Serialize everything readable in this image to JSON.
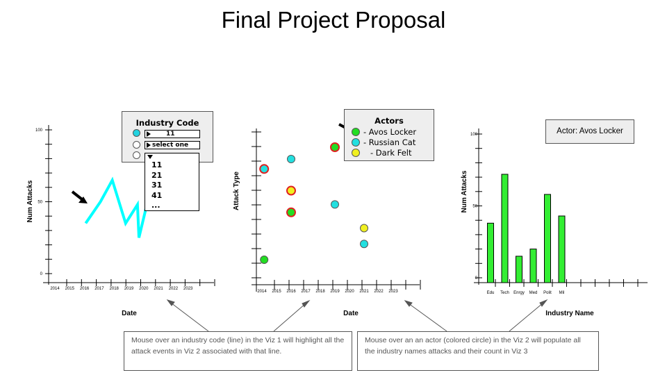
{
  "title": "Final Project Proposal",
  "viz1": {
    "ylabel": "Num Attacks",
    "xlabel": "Date",
    "y_ticks": [
      "100",
      "50",
      "0"
    ],
    "x_ticks": [
      "2014",
      "2015",
      "2016",
      "2017",
      "2018",
      "2019",
      "2020",
      "2021",
      "2022",
      "2023"
    ],
    "line_color": "#00ffff"
  },
  "industry_panel": {
    "title": "Industry Code",
    "select1_value": "11",
    "select2_value": "select one",
    "radio1_color": "#22d3e0",
    "dropdown_options": [
      "11",
      "21",
      "31",
      "41",
      "..."
    ]
  },
  "viz2": {
    "ylabel": "Attack Type",
    "xlabel": "Date",
    "x_ticks": [
      "2014",
      "2015",
      "2016",
      "2017",
      "2018",
      "2019",
      "2020",
      "2021",
      "2022",
      "2023"
    ]
  },
  "actors_panel": {
    "title": "Actors",
    "items": [
      {
        "label": "- Avos Locker",
        "color": "#22dd22"
      },
      {
        "label": "- Russian Cat",
        "color": "#22e0e0"
      },
      {
        "label": "- Dark Felt",
        "color": "#f0f020"
      }
    ]
  },
  "viz3": {
    "actor_label": "Actor: Avos Locker",
    "ylabel": "Num Attacks",
    "xlabel": "Industry Name",
    "y_ticks": [
      "100",
      "50",
      "0"
    ],
    "bar_color": "#33ee33"
  },
  "notes": {
    "left": "Mouse over an industry code (line) in the Viz 1 will highlight all the attack events in Viz 2 associated with that line.",
    "right": "Mouse over an an actor (colored circle) in the Viz 2 will populate all the industry names attacks and their count in Viz 3"
  },
  "chart_data": [
    {
      "type": "line",
      "x": [
        2015,
        2016,
        2016.8,
        2017.7,
        2018.5,
        2018.6,
        2019.6
      ],
      "y": [
        35,
        50,
        65,
        35,
        48,
        25,
        68
      ],
      "ylim": [
        0,
        100
      ],
      "xlabel": "Date",
      "ylabel": "Num Attacks"
    },
    {
      "type": "scatter",
      "x_ticks": [
        "2014",
        "2015",
        "2016",
        "2017",
        "2018",
        "2019",
        "2020",
        "2021",
        "2022",
        "2023"
      ],
      "xlabel": "Date",
      "ylabel": "Attack Type",
      "series": [
        {
          "name": "- Avos Locker",
          "points": [
            {
              "x": 2014.2,
              "y": 1.0
            },
            {
              "x": 2016,
              "y": 3.4
            },
            {
              "x": 2019,
              "y": 6.7
            }
          ]
        },
        {
          "name": "- Russian Cat",
          "points": [
            {
              "x": 2014.2,
              "y": 5.6
            },
            {
              "x": 2016,
              "y": 6.1
            },
            {
              "x": 2019,
              "y": 3.8
            },
            {
              "x": 2021,
              "y": 1.8
            }
          ]
        },
        {
          "name": "- Dark Felt",
          "points": [
            {
              "x": 2016,
              "y": 4.5
            },
            {
              "x": 2021,
              "y": 2.6
            }
          ]
        }
      ]
    },
    {
      "type": "bar",
      "categories": [
        "Edu",
        "Tech",
        "Enrgy",
        "Med",
        "Polit",
        "Mil"
      ],
      "values": [
        38,
        72,
        15,
        20,
        58,
        43
      ],
      "ylim": [
        0,
        100
      ],
      "xlabel": "Industry Name",
      "ylabel": "Num Attacks"
    }
  ]
}
